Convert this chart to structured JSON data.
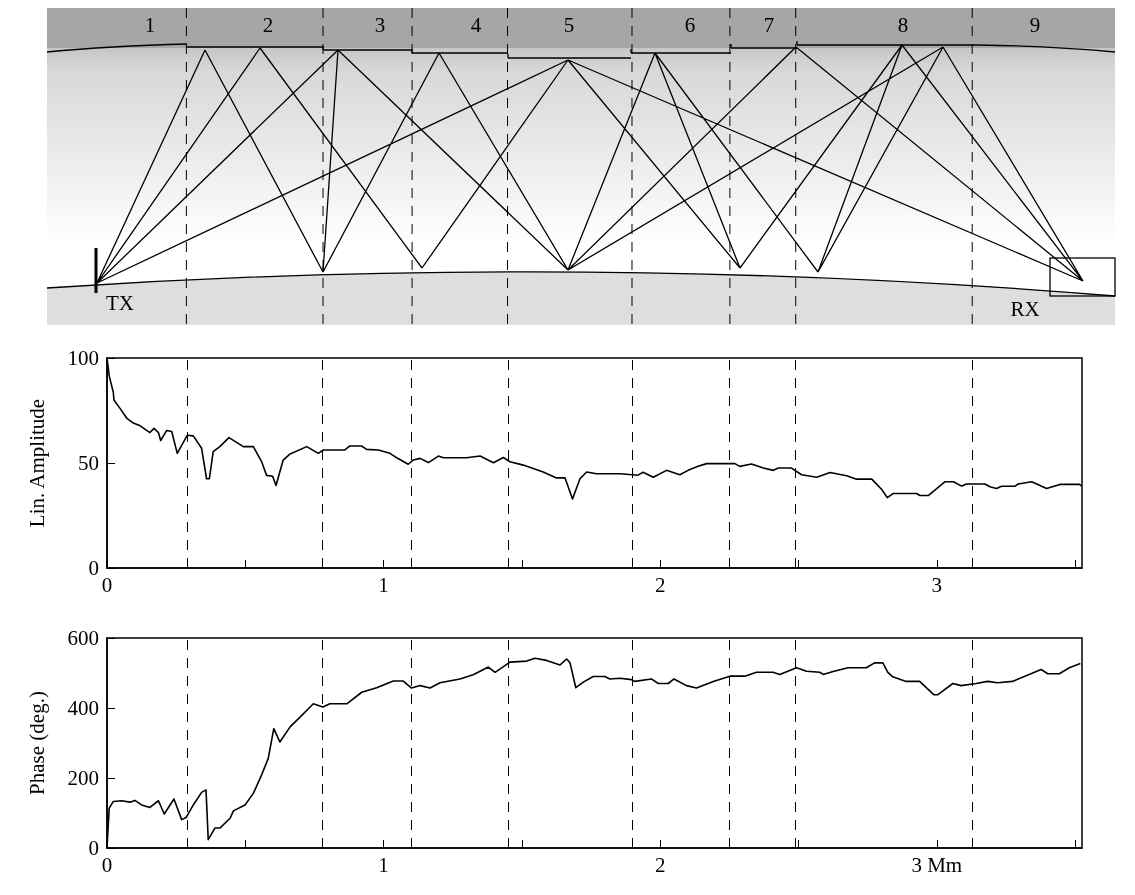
{
  "chart_data": [
    {
      "type": "other",
      "annotations": [
        "1",
        "2",
        "3",
        "4",
        "5",
        "6",
        "7",
        "8",
        "9",
        "TX",
        "RX"
      ]
    },
    {
      "type": "line",
      "ylabel": "Lin. Amplitude",
      "xlim": [
        0,
        3.525
      ],
      "xticks": [
        0,
        {
          "value": 0.5,
          "label": null
        },
        1,
        {
          "value": 1.5,
          "label": null
        },
        2,
        {
          "value": 2.5,
          "label": null
        },
        3,
        {
          "value": 3.5,
          "label": null
        }
      ],
      "ylim": [
        0,
        100
      ],
      "yticks": [
        0,
        50,
        100
      ],
      "grid": false,
      "marker": "none",
      "line_style": "solid",
      "series": [
        {
          "color": "#000000",
          "x": [
            0,
            0.008,
            0.023,
            0.025,
            0.047,
            0.071,
            0.095,
            0.12,
            0.155,
            0.17,
            0.186,
            0.194,
            0.216,
            0.234,
            0.254,
            0.29,
            0.312,
            0.342,
            0.36,
            0.37,
            0.384,
            0.408,
            0.441,
            0.493,
            0.529,
            0.559,
            0.577,
            0.599,
            0.611,
            0.637,
            0.662,
            0.722,
            0.764,
            0.782,
            0.86,
            0.878,
            0.92,
            0.939,
            0.981,
            1.023,
            1.041,
            1.089,
            1.107,
            1.132,
            1.162,
            1.198,
            1.216,
            1.3,
            1.349,
            1.397,
            1.433,
            1.457,
            1.505,
            1.577,
            1.625,
            1.656,
            1.683,
            1.71,
            1.734,
            1.77,
            1.855,
            1.92,
            1.938,
            1.975,
            2.023,
            2.071,
            2.101,
            2.137,
            2.168,
            2.27,
            2.288,
            2.33,
            2.373,
            2.409,
            2.427,
            2.475,
            2.511,
            2.566,
            2.614,
            2.674,
            2.71,
            2.765,
            2.801,
            2.821,
            2.843,
            2.927,
            2.939,
            2.969,
            3.005,
            3.03,
            3.06,
            3.09,
            3.108,
            3.174,
            3.192,
            3.216,
            3.234,
            3.282,
            3.294,
            3.343,
            3.397,
            3.445,
            3.517,
            3.522
          ],
          "values": [
            100,
            91.5,
            83.5,
            80,
            76,
            71.4,
            69,
            67.7,
            64.5,
            66.5,
            64.5,
            60.7,
            65.5,
            65,
            54.6,
            63.2,
            62.9,
            57,
            42.5,
            42.5,
            55.4,
            57.8,
            62.1,
            57.8,
            57.8,
            50.6,
            44.1,
            43.7,
            39.3,
            51.4,
            54.3,
            57.8,
            54.6,
            56.2,
            56.2,
            58.1,
            58.1,
            56.5,
            56.2,
            54.6,
            53,
            49.4,
            51.4,
            52.2,
            50.2,
            53.3,
            52.5,
            52.5,
            53.3,
            50.1,
            52.6,
            50.6,
            49,
            45.7,
            42.9,
            42.9,
            32.9,
            42.5,
            45.7,
            44.9,
            44.9,
            44.2,
            45.6,
            43.2,
            46.5,
            44.4,
            46.5,
            48.4,
            49.7,
            49.7,
            48.4,
            49.5,
            47.6,
            46.5,
            47.6,
            47.6,
            44.4,
            43.2,
            45.5,
            43.9,
            42.3,
            42.3,
            37.4,
            33.5,
            35.5,
            35.5,
            34.5,
            34.5,
            38.4,
            41.1,
            41.1,
            39,
            40,
            40,
            38.7,
            37.9,
            38.9,
            38.9,
            40,
            41.1,
            37.9,
            39.8,
            39.8,
            39
          ]
        }
      ],
      "ref_lines": [
        {
          "axis": "x",
          "value": 0.287,
          "color": "#000000",
          "line_style": "dashed"
        },
        {
          "axis": "x",
          "value": 0.781,
          "color": "#000000",
          "line_style": "dashed"
        },
        {
          "axis": "x",
          "value": 1.103,
          "color": "#000000",
          "line_style": "dashed"
        },
        {
          "axis": "x",
          "value": 1.448,
          "color": "#000000",
          "line_style": "dashed"
        },
        {
          "axis": "x",
          "value": 1.898,
          "color": "#000000",
          "line_style": "dashed"
        },
        {
          "axis": "x",
          "value": 2.252,
          "color": "#000000",
          "line_style": "dashed"
        },
        {
          "axis": "x",
          "value": 2.49,
          "color": "#000000",
          "line_style": "dashed"
        },
        {
          "axis": "x",
          "value": 3.128,
          "color": "#000000",
          "line_style": "dashed"
        }
      ]
    },
    {
      "type": "line",
      "ylabel": "Phase (deg.)",
      "xlim": [
        0,
        3.525
      ],
      "xticks": [
        0,
        {
          "value": 0.5,
          "label": null
        },
        1,
        {
          "value": 1.5,
          "label": null
        },
        2,
        {
          "value": 2.5,
          "label": null
        },
        {
          "value": 3,
          "label": "3 Mm"
        },
        {
          "value": 3.5,
          "label": null
        }
      ],
      "ylim": [
        0,
        600
      ],
      "yticks": [
        0,
        200,
        400,
        600
      ],
      "grid": false,
      "marker": "none",
      "line_style": "solid",
      "series": [
        {
          "color": "#000000",
          "x": [
            0,
            0.008,
            0.023,
            0.053,
            0.083,
            0.101,
            0.125,
            0.155,
            0.186,
            0.207,
            0.242,
            0.27,
            0.286,
            0.312,
            0.342,
            0.358,
            0.366,
            0.39,
            0.408,
            0.445,
            0.457,
            0.499,
            0.529,
            0.559,
            0.583,
            0.603,
            0.625,
            0.662,
            0.698,
            0.746,
            0.78,
            0.806,
            0.867,
            0.921,
            0.975,
            1.035,
            1.071,
            1.101,
            1.132,
            1.168,
            1.204,
            1.276,
            1.324,
            1.379,
            1.403,
            1.457,
            1.517,
            1.547,
            1.589,
            1.638,
            1.662,
            1.674,
            1.695,
            1.722,
            1.758,
            1.8,
            1.818,
            1.855,
            1.896,
            1.908,
            1.968,
            1.993,
            2.029,
            2.05,
            2.095,
            2.131,
            2.192,
            2.252,
            2.306,
            2.348,
            2.408,
            2.432,
            2.493,
            2.529,
            2.577,
            2.589,
            2.625,
            2.679,
            2.709,
            2.745,
            2.775,
            2.805,
            2.823,
            2.841,
            2.889,
            2.938,
            2.989,
            3.004,
            3.058,
            3.088,
            3.142,
            3.184,
            3.22,
            3.274,
            3.334,
            3.377,
            3.401,
            3.443,
            3.479,
            3.519
          ],
          "values": [
            0,
            114,
            133,
            135,
            131,
            136,
            123,
            116,
            135,
            97,
            140,
            81,
            87,
            123,
            159,
            166,
            24,
            57,
            57,
            85,
            106,
            123,
            156,
            209,
            256,
            341,
            303,
            346,
            374,
            412,
            403,
            412,
            412,
            445,
            458,
            477,
            477,
            457,
            464,
            457,
            472,
            483,
            495,
            517,
            502,
            531,
            534,
            542,
            536,
            523,
            540,
            529,
            458,
            474,
            490,
            490,
            483,
            485,
            481,
            476,
            483,
            470,
            470,
            483,
            464,
            457,
            476,
            491,
            491,
            502,
            502,
            496,
            515,
            505,
            502,
            496,
            504,
            515,
            515,
            515,
            529,
            529,
            502,
            489,
            476,
            476,
            438,
            438,
            470,
            464,
            470,
            476,
            472,
            476,
            496,
            510,
            498,
            498,
            515,
            527
          ]
        }
      ],
      "ref_lines": [
        {
          "axis": "x",
          "value": 0.287,
          "color": "#000000",
          "line_style": "dashed"
        },
        {
          "axis": "x",
          "value": 0.781,
          "color": "#000000",
          "line_style": "dashed"
        },
        {
          "axis": "x",
          "value": 1.103,
          "color": "#000000",
          "line_style": "dashed"
        },
        {
          "axis": "x",
          "value": 1.448,
          "color": "#000000",
          "line_style": "dashed"
        },
        {
          "axis": "x",
          "value": 1.898,
          "color": "#000000",
          "line_style": "dashed"
        },
        {
          "axis": "x",
          "value": 2.252,
          "color": "#000000",
          "line_style": "dashed"
        },
        {
          "axis": "x",
          "value": 2.49,
          "color": "#000000",
          "line_style": "dashed"
        },
        {
          "axis": "x",
          "value": 3.128,
          "color": "#000000",
          "line_style": "dashed"
        }
      ]
    }
  ]
}
